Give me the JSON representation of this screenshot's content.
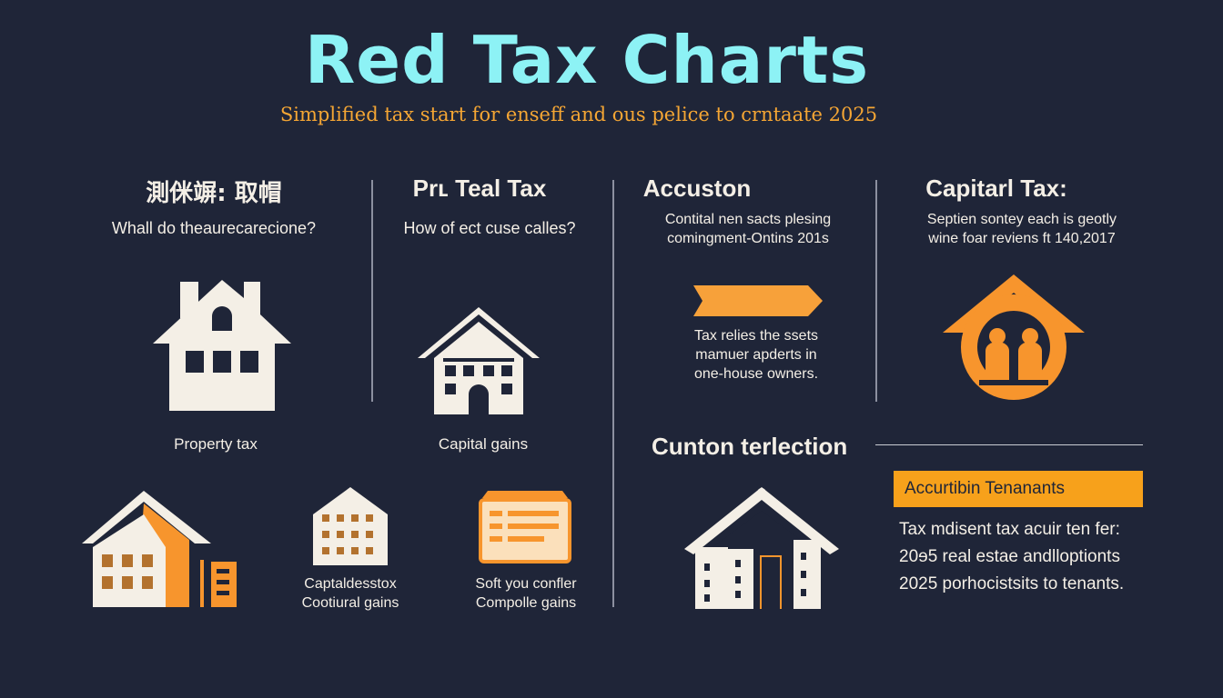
{
  "header": {
    "title": "Red Tax Charts",
    "subtitle": "Simplified tax start for enseff and ous pelice to crntaate 2025"
  },
  "columns": [
    {
      "title": "測侎竮: 取帽",
      "question": "Whall do theaurecarecione?"
    },
    {
      "title": "Prʟ Teal Tax",
      "question": "How of ect cuse calles?"
    },
    {
      "title": "Accuston",
      "lines": [
        "Contital nen sacts plesing",
        "comingment-Ontins 201s"
      ]
    },
    {
      "title": "Capitarl Tax:",
      "lines": [
        "Septien sontey each is geotly",
        "wine foar reviens ft 140,2017"
      ]
    }
  ],
  "captions": {
    "property_tax": "Property tax",
    "capital_gains": "Capital gains",
    "bottom_left_1": [
      "Captaldesstox",
      "Cootiural gains"
    ],
    "bottom_left_2": [
      "Soft you confler",
      "Compolle gains"
    ]
  },
  "accuston_note": [
    "Tax relies the ssets",
    "mamuer apderts in",
    "one-house owners."
  ],
  "section": {
    "title": "Cunton terlection",
    "banner": "Accurtibin Tenanants",
    "lines": [
      "Tax mdisent tax acuir ten fer:",
      "20ɘ5 real estae andlloptionts",
      "2025 porhocistsits to tenants."
    ]
  },
  "colors": {
    "background": "#1f2538",
    "title": "#8df2f5",
    "accent": "#f5a634",
    "ivory": "#f4efe6"
  },
  "icons": [
    "house-icon",
    "building-icon",
    "arrow-banner-icon",
    "people-home-icon",
    "apartment-icon",
    "document-icon",
    "roof-building-icon"
  ]
}
